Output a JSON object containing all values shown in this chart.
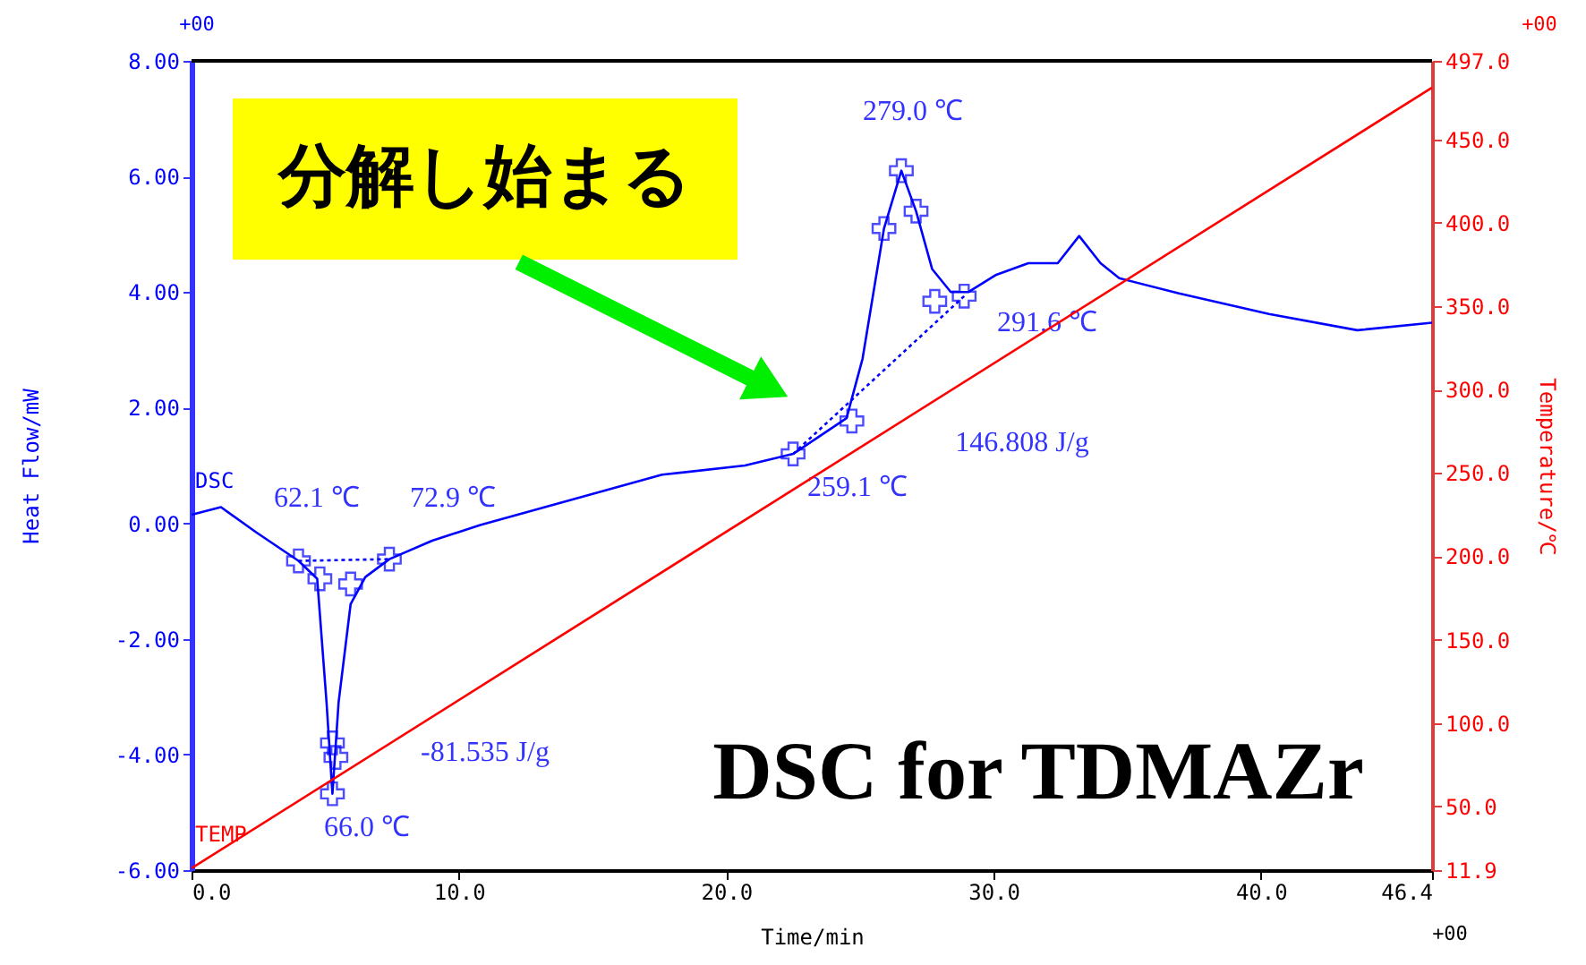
{
  "chart_data": {
    "type": "line",
    "xlabel": "Time/min",
    "ylabel": "Heat Flow/mW",
    "y2label": "Temperature/℃",
    "xlim": [
      0,
      46.4
    ],
    "xticks": [
      {
        "value": 0,
        "label": "0.0"
      },
      {
        "value": 10,
        "label": "10.0"
      },
      {
        "value": 20,
        "label": "20.0"
      },
      {
        "value": 30,
        "label": "30.0"
      },
      {
        "value": 40,
        "label": "40.0"
      },
      46.4
    ],
    "ylim": [
      -6,
      8
    ],
    "yticks": [
      {
        "value": -6,
        "label": "-6.00"
      },
      {
        "value": -4,
        "label": "-4.00"
      },
      {
        "value": -2,
        "label": "-2.00"
      },
      {
        "value": 0,
        "label": "0.00"
      },
      {
        "value": 2,
        "label": "2.00"
      },
      {
        "value": 4,
        "label": "4.00"
      },
      {
        "value": 6,
        "label": "6.00"
      },
      {
        "value": 8,
        "label": "8.00"
      }
    ],
    "y2lim": [
      11.9,
      497.0
    ],
    "y2ticks": [
      11.9,
      {
        "value": 50,
        "label": "50.0"
      },
      {
        "value": 100,
        "label": "100.0"
      },
      {
        "value": 150,
        "label": "150.0"
      },
      {
        "value": 200,
        "label": "200.0"
      },
      {
        "value": 250,
        "label": "250.0"
      },
      {
        "value": 300,
        "label": "300.0"
      },
      {
        "value": 350,
        "label": "350.0"
      },
      {
        "value": 400,
        "label": "400.0"
      },
      {
        "value": 450,
        "label": "450.0"
      },
      {
        "value": 497,
        "label": "497.0"
      }
    ],
    "series": [
      {
        "name": "DSC",
        "color": "#0000ff",
        "x": [
          0.0,
          1.1,
          2.4,
          4.0,
          4.7,
          5.05,
          5.27,
          5.5,
          5.95,
          6.5,
          7.4,
          9.0,
          10.8,
          17.6,
          20.7,
          22.5,
          24.5,
          25.1,
          25.9,
          26.55,
          27.1,
          27.7,
          28.4,
          29.05,
          30.1,
          31.3,
          32.4,
          33.2,
          34.0,
          34.7,
          36.9,
          40.3,
          43.6,
          46.4
        ],
        "values": [
          0.15,
          0.28,
          -0.15,
          -0.65,
          -0.96,
          -3.1,
          -4.68,
          -3.1,
          -1.4,
          -0.93,
          -0.62,
          -0.3,
          -0.03,
          0.84,
          1.0,
          1.2,
          1.82,
          2.85,
          5.1,
          6.1,
          5.4,
          4.4,
          4.0,
          4.0,
          4.3,
          4.5,
          4.5,
          4.97,
          4.5,
          4.24,
          3.98,
          3.62,
          3.34,
          3.47
        ]
      },
      {
        "color": "#0000ff",
        "type": "line",
        "line_style": "dotted",
        "x": [
          4.0,
          7.4
        ],
        "values": [
          -0.65,
          -0.62
        ]
      },
      {
        "color": "#0000ff",
        "type": "line",
        "line_style": "dotted",
        "x": [
          22.5,
          28.9
        ],
        "values": [
          1.2,
          3.93
        ]
      },
      {
        "color": "#0000ff",
        "type": "scatter",
        "marker": "cross",
        "x": [
          4.0,
          4.8,
          5.95,
          7.4,
          5.27,
          5.4,
          5.27,
          22.5,
          24.7,
          25.9,
          26.55,
          27.1,
          27.8,
          28.9
        ],
        "values": [
          -0.65,
          -0.96,
          -1.05,
          -0.62,
          -3.8,
          -4.05,
          -4.68,
          1.2,
          1.77,
          5.1,
          6.1,
          5.4,
          3.84,
          3.93
        ]
      },
      {
        "name": "TEMP",
        "color": "#ff0000",
        "axis": "y2",
        "x": [
          0,
          46.4
        ],
        "values": [
          13,
          481
        ]
      }
    ],
    "annotations": [
      "分解し始まる",
      "DSC for TDMAZr",
      "+00",
      "+00",
      "+00",
      "62.1 ℃",
      "72.9 ℃",
      "66.0 ℃",
      "-81.535 J/g",
      "279.0 ℃",
      "291.6 ℃",
      "146.808 J/g",
      "259.1 ℃"
    ]
  }
}
